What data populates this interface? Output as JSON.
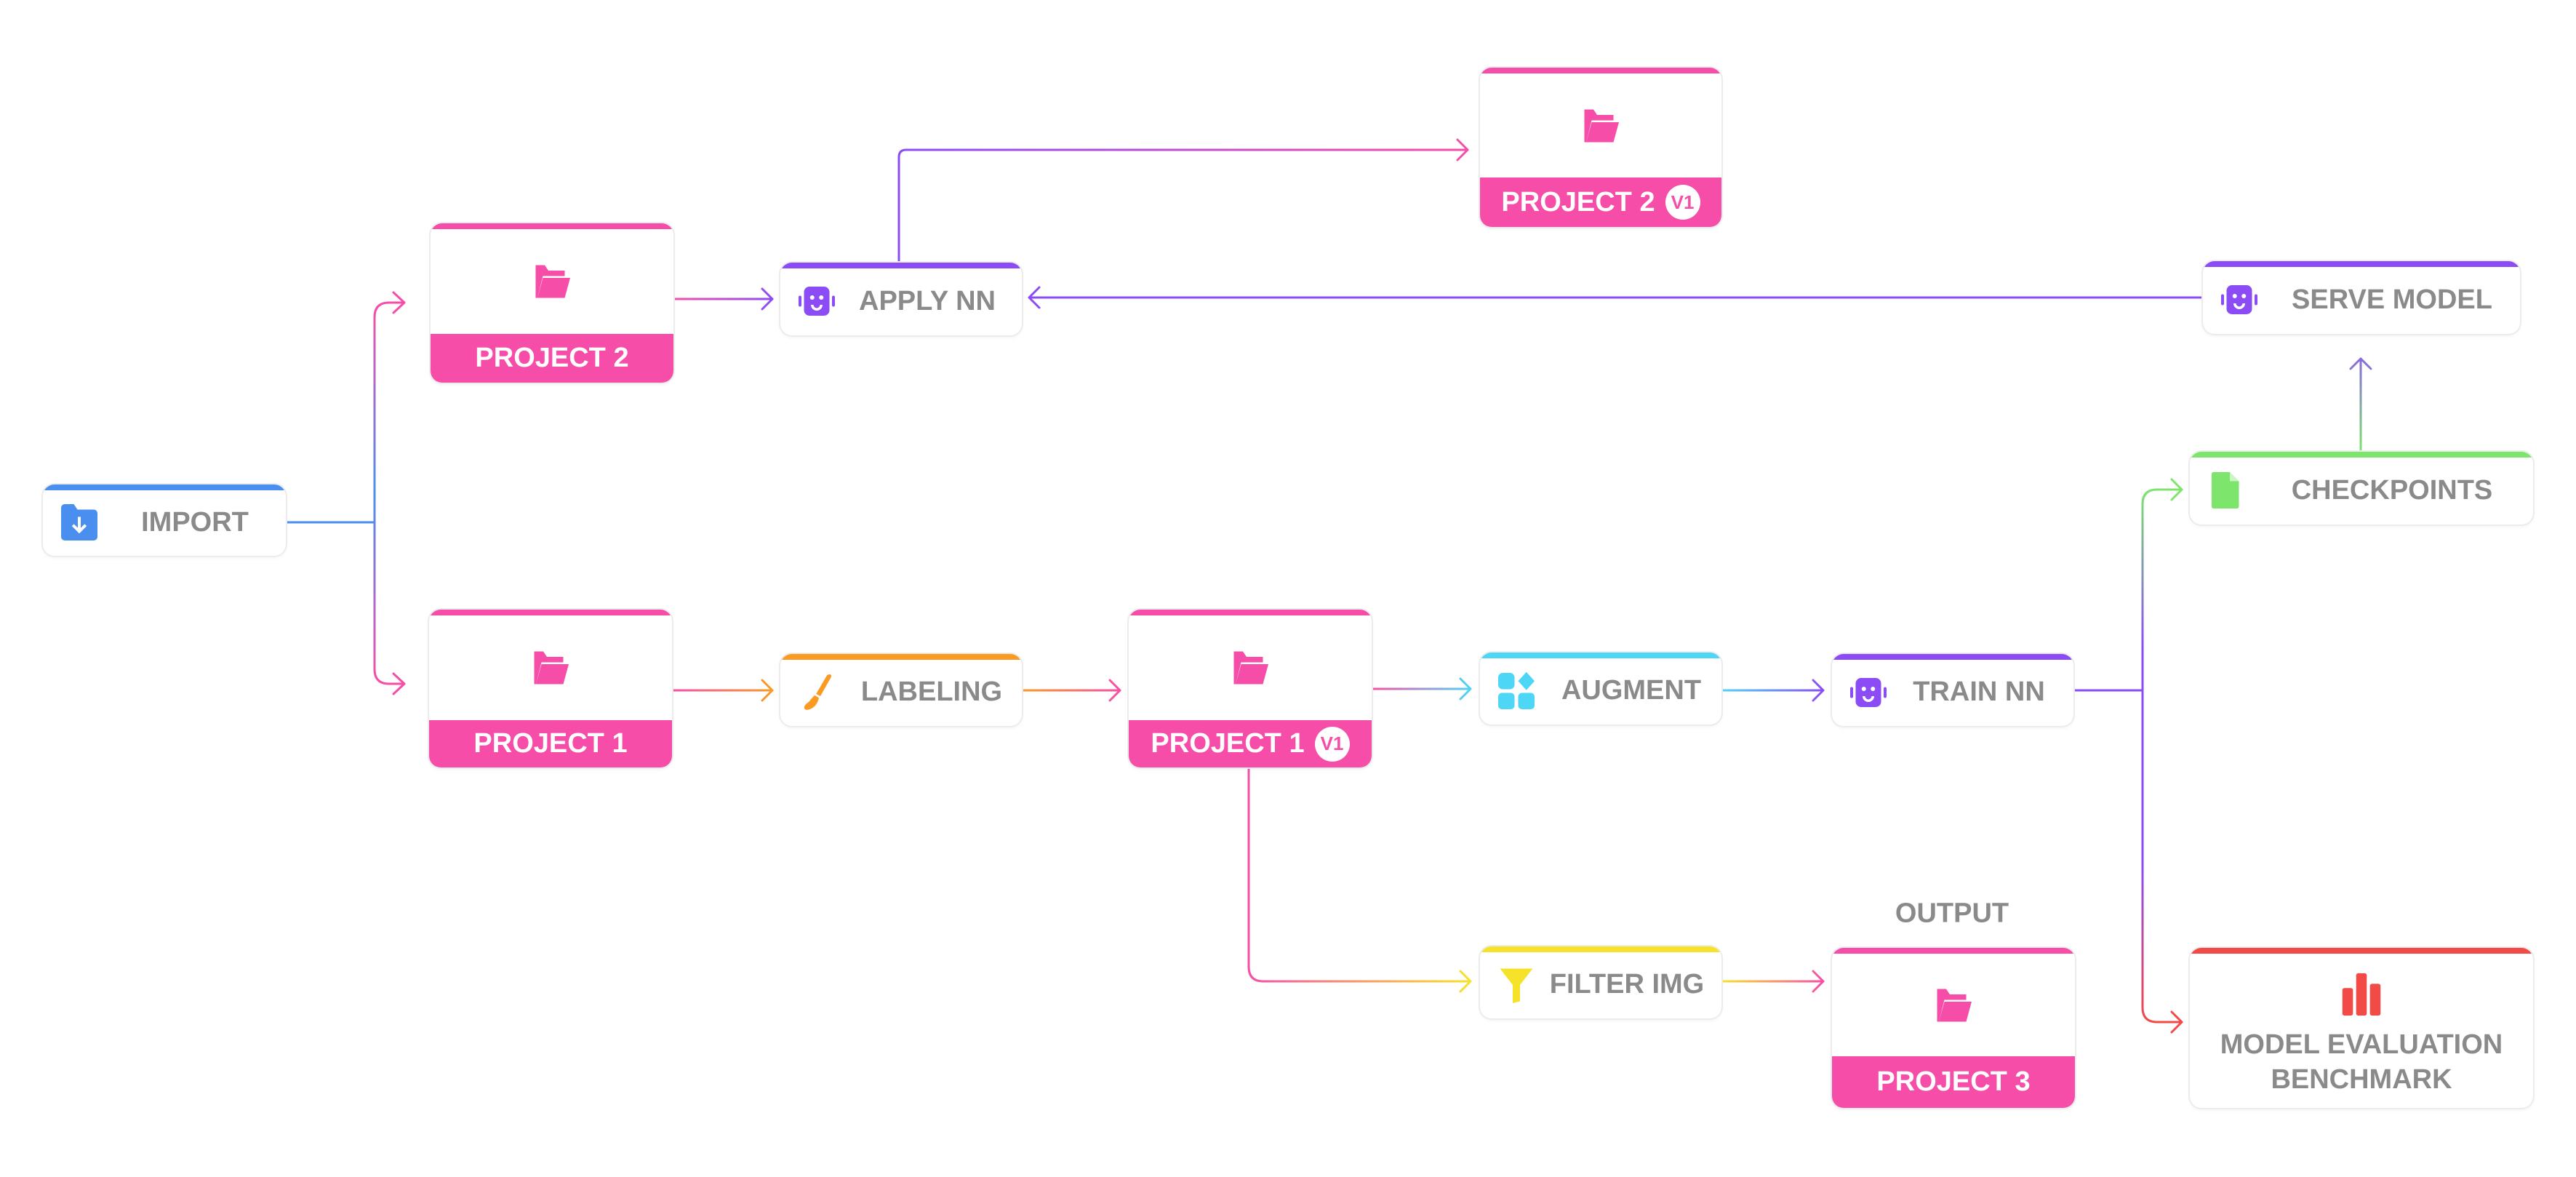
{
  "colors": {
    "blue": "#4a8ff0",
    "pink": "#f64ea8",
    "purple": "#8b4cf6",
    "orange": "#fa9a22",
    "cyan": "#4dd6f5",
    "yellow": "#f7e22a",
    "green": "#7de46c",
    "red": "#f24a46",
    "text": "#8a8a8a"
  },
  "nodes": {
    "import": {
      "label": "IMPORT",
      "icon": "folder-download-icon"
    },
    "project2": {
      "label": "PROJECT 2",
      "icon": "folder-open-icon"
    },
    "project1": {
      "label": "PROJECT 1",
      "icon": "folder-open-icon"
    },
    "apply_nn": {
      "label": "APPLY NN",
      "icon": "robot-icon"
    },
    "labeling": {
      "label": "LABELING",
      "icon": "brush-icon"
    },
    "project1_v1": {
      "label": "PROJECT 1",
      "badge": "V1",
      "icon": "folder-open-icon"
    },
    "project2_v1": {
      "label": "PROJECT 2",
      "badge": "V1",
      "icon": "folder-open-icon"
    },
    "augment": {
      "label": "AUGMENT",
      "icon": "shapes-icon"
    },
    "train_nn": {
      "label": "TRAIN NN",
      "icon": "robot-icon"
    },
    "filter_img": {
      "label": "FILTER IMG",
      "icon": "filter-icon"
    },
    "output_label": "OUTPUT",
    "project3": {
      "label": "PROJECT 3",
      "icon": "folder-open-icon"
    },
    "serve_model": {
      "label": "SERVE MODEL",
      "icon": "robot-icon"
    },
    "checkpoints": {
      "label": "CHECKPOINTS",
      "icon": "file-icon"
    },
    "model_eval": {
      "label": "MODEL EVALUATION BENCHMARK",
      "icon": "bar-chart-icon"
    }
  },
  "edges": [
    [
      "import",
      "project2"
    ],
    [
      "import",
      "project1"
    ],
    [
      "project2",
      "apply_nn"
    ],
    [
      "apply_nn",
      "project2_v1"
    ],
    [
      "serve_model",
      "apply_nn"
    ],
    [
      "project1",
      "labeling"
    ],
    [
      "labeling",
      "project1_v1"
    ],
    [
      "project1_v1",
      "augment"
    ],
    [
      "augment",
      "train_nn"
    ],
    [
      "train_nn",
      "checkpoints"
    ],
    [
      "train_nn",
      "model_eval"
    ],
    [
      "checkpoints",
      "serve_model"
    ],
    [
      "project1_v1",
      "filter_img"
    ],
    [
      "filter_img",
      "project3"
    ]
  ]
}
